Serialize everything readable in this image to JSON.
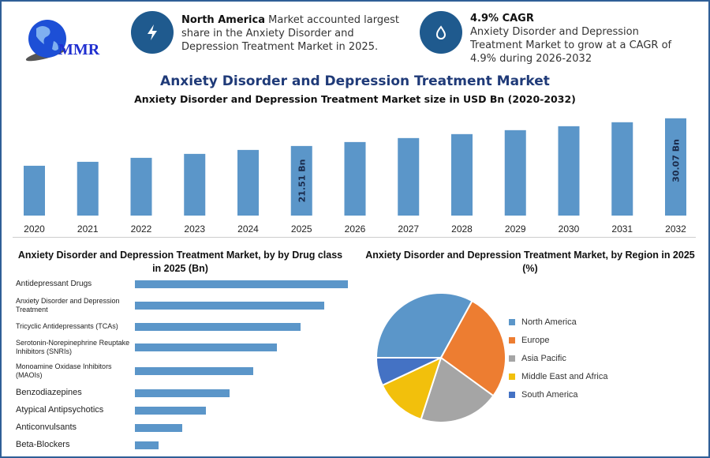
{
  "logo": {
    "text": "MMR"
  },
  "info1": {
    "icon": "lightning-icon",
    "bold": "North America",
    "text": " Market accounted largest share in the Anxiety Disorder and Depression Treatment Market in 2025."
  },
  "info2": {
    "icon": "drop-icon",
    "bold": "4.9% CAGR",
    "text": "Anxiety Disorder and Depression Treatment Market to grow at a CAGR of 4.9% during 2026-2032"
  },
  "main_title": "Anxiety Disorder and Depression Treatment Market",
  "colors": {
    "bar": "#5b96c9",
    "accent": "#1f5a8e",
    "title": "#1f3a78"
  },
  "chart_data": [
    {
      "type": "bar",
      "title": "Anxiety Disorder and Depression Treatment Market size in USD Bn (2020-2032)",
      "categories": [
        "2020",
        "2021",
        "2022",
        "2023",
        "2024",
        "2025",
        "2026",
        "2027",
        "2028",
        "2029",
        "2030",
        "2031",
        "2032"
      ],
      "values": [
        15.4,
        16.62,
        17.85,
        19.07,
        20.29,
        21.51,
        22.73,
        23.96,
        25.18,
        26.4,
        27.62,
        28.85,
        30.07
      ],
      "data_labels": {
        "2025": "21.51 Bn",
        "2032": "30.07 Bn"
      },
      "ylim": [
        0,
        31
      ],
      "grid": false
    },
    {
      "type": "bar",
      "orientation": "horizontal",
      "title": "Anxiety Disorder and Depression Treatment Market, by by Drug class in 2025 (Bn)",
      "categories": [
        "Antidepressant Drugs",
        "Anxiety Disorder and Depression Treatment",
        "Tricyclic Antidepressants (TCAs)",
        "Serotonin-Norepinephrine Reuptake Inhibitors (SNRIs)",
        "Monoamine Oxidase Inhibitors (MAOIs)",
        "Benzodiazepines",
        "Atypical Antipsychotics",
        "Anticonvulsants",
        "Beta-Blockers"
      ],
      "values": [
        9,
        8,
        7,
        6,
        5,
        4,
        3,
        2,
        1
      ],
      "grid": false
    },
    {
      "type": "pie",
      "title": "Anxiety Disorder and Depression Treatment Market, by Region in 2025 (%)",
      "categories": [
        "North America",
        "Europe",
        "Asia Pacific",
        "Middle East and Africa",
        "South America"
      ],
      "values": [
        33,
        27,
        20,
        13,
        7
      ],
      "colors": [
        "#5b96c9",
        "#ed7d31",
        "#a5a5a5",
        "#f2c00c",
        "#4472c4"
      ],
      "legend": "right"
    }
  ]
}
